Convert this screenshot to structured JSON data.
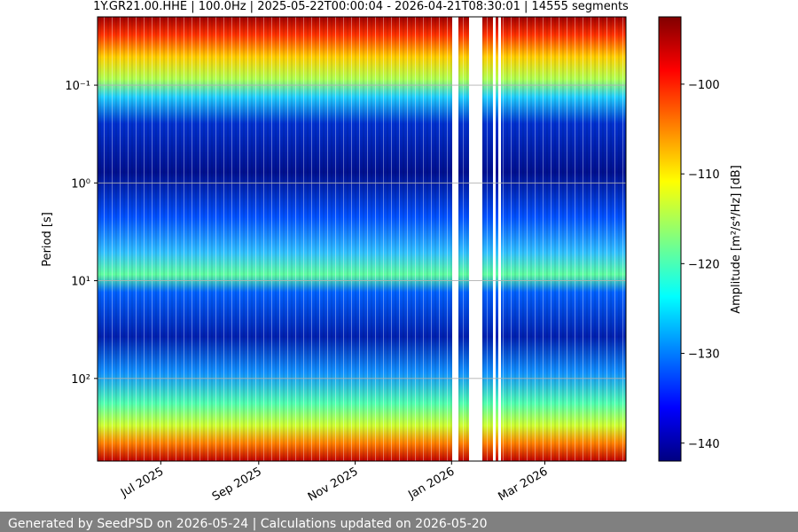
{
  "chart_data": {
    "type": "spectrogram",
    "title": "1Y.GR21.00.HHE | 100.0Hz | 2025-05-22T00:00:04 - 2026-04-21T08:30:01 | 14555 segments",
    "y_label": "Period [s]",
    "colorbar_label": "Amplitude [m²/s⁴/Hz] [dB]",
    "xlim": [
      "2025-05-22T00:00:04",
      "2026-04-21T08:30:01"
    ],
    "xticks": [
      {
        "value": "2025-07",
        "label": "Jul 2025"
      },
      {
        "value": "2025-09",
        "label": "Sep 2025"
      },
      {
        "value": "2025-11",
        "label": "Nov 2025"
      },
      {
        "value": "2026-01",
        "label": "Jan 2026"
      },
      {
        "value": "2026-03",
        "label": "Mar 2026"
      }
    ],
    "yscale": "log",
    "y_inverted": true,
    "ylim": [
      0.02,
      700
    ],
    "yticks": [
      {
        "value": 0.1,
        "label": "10⁻¹"
      },
      {
        "value": 1,
        "label": "10⁰"
      },
      {
        "value": 10,
        "label": "10¹"
      },
      {
        "value": 100,
        "label": "10²"
      }
    ],
    "grid": true,
    "clim": [
      -142,
      -92.5
    ],
    "cticks": [
      {
        "value": -100,
        "label": "−100"
      },
      {
        "value": -110,
        "label": "−110"
      },
      {
        "value": -120,
        "label": "−120"
      },
      {
        "value": -130,
        "label": "−130"
      },
      {
        "value": -140,
        "label": "−140"
      }
    ]
  },
  "footer": "Generated by SeedPSD on 2026-05-24 | Calculations updated on 2026-05-20"
}
